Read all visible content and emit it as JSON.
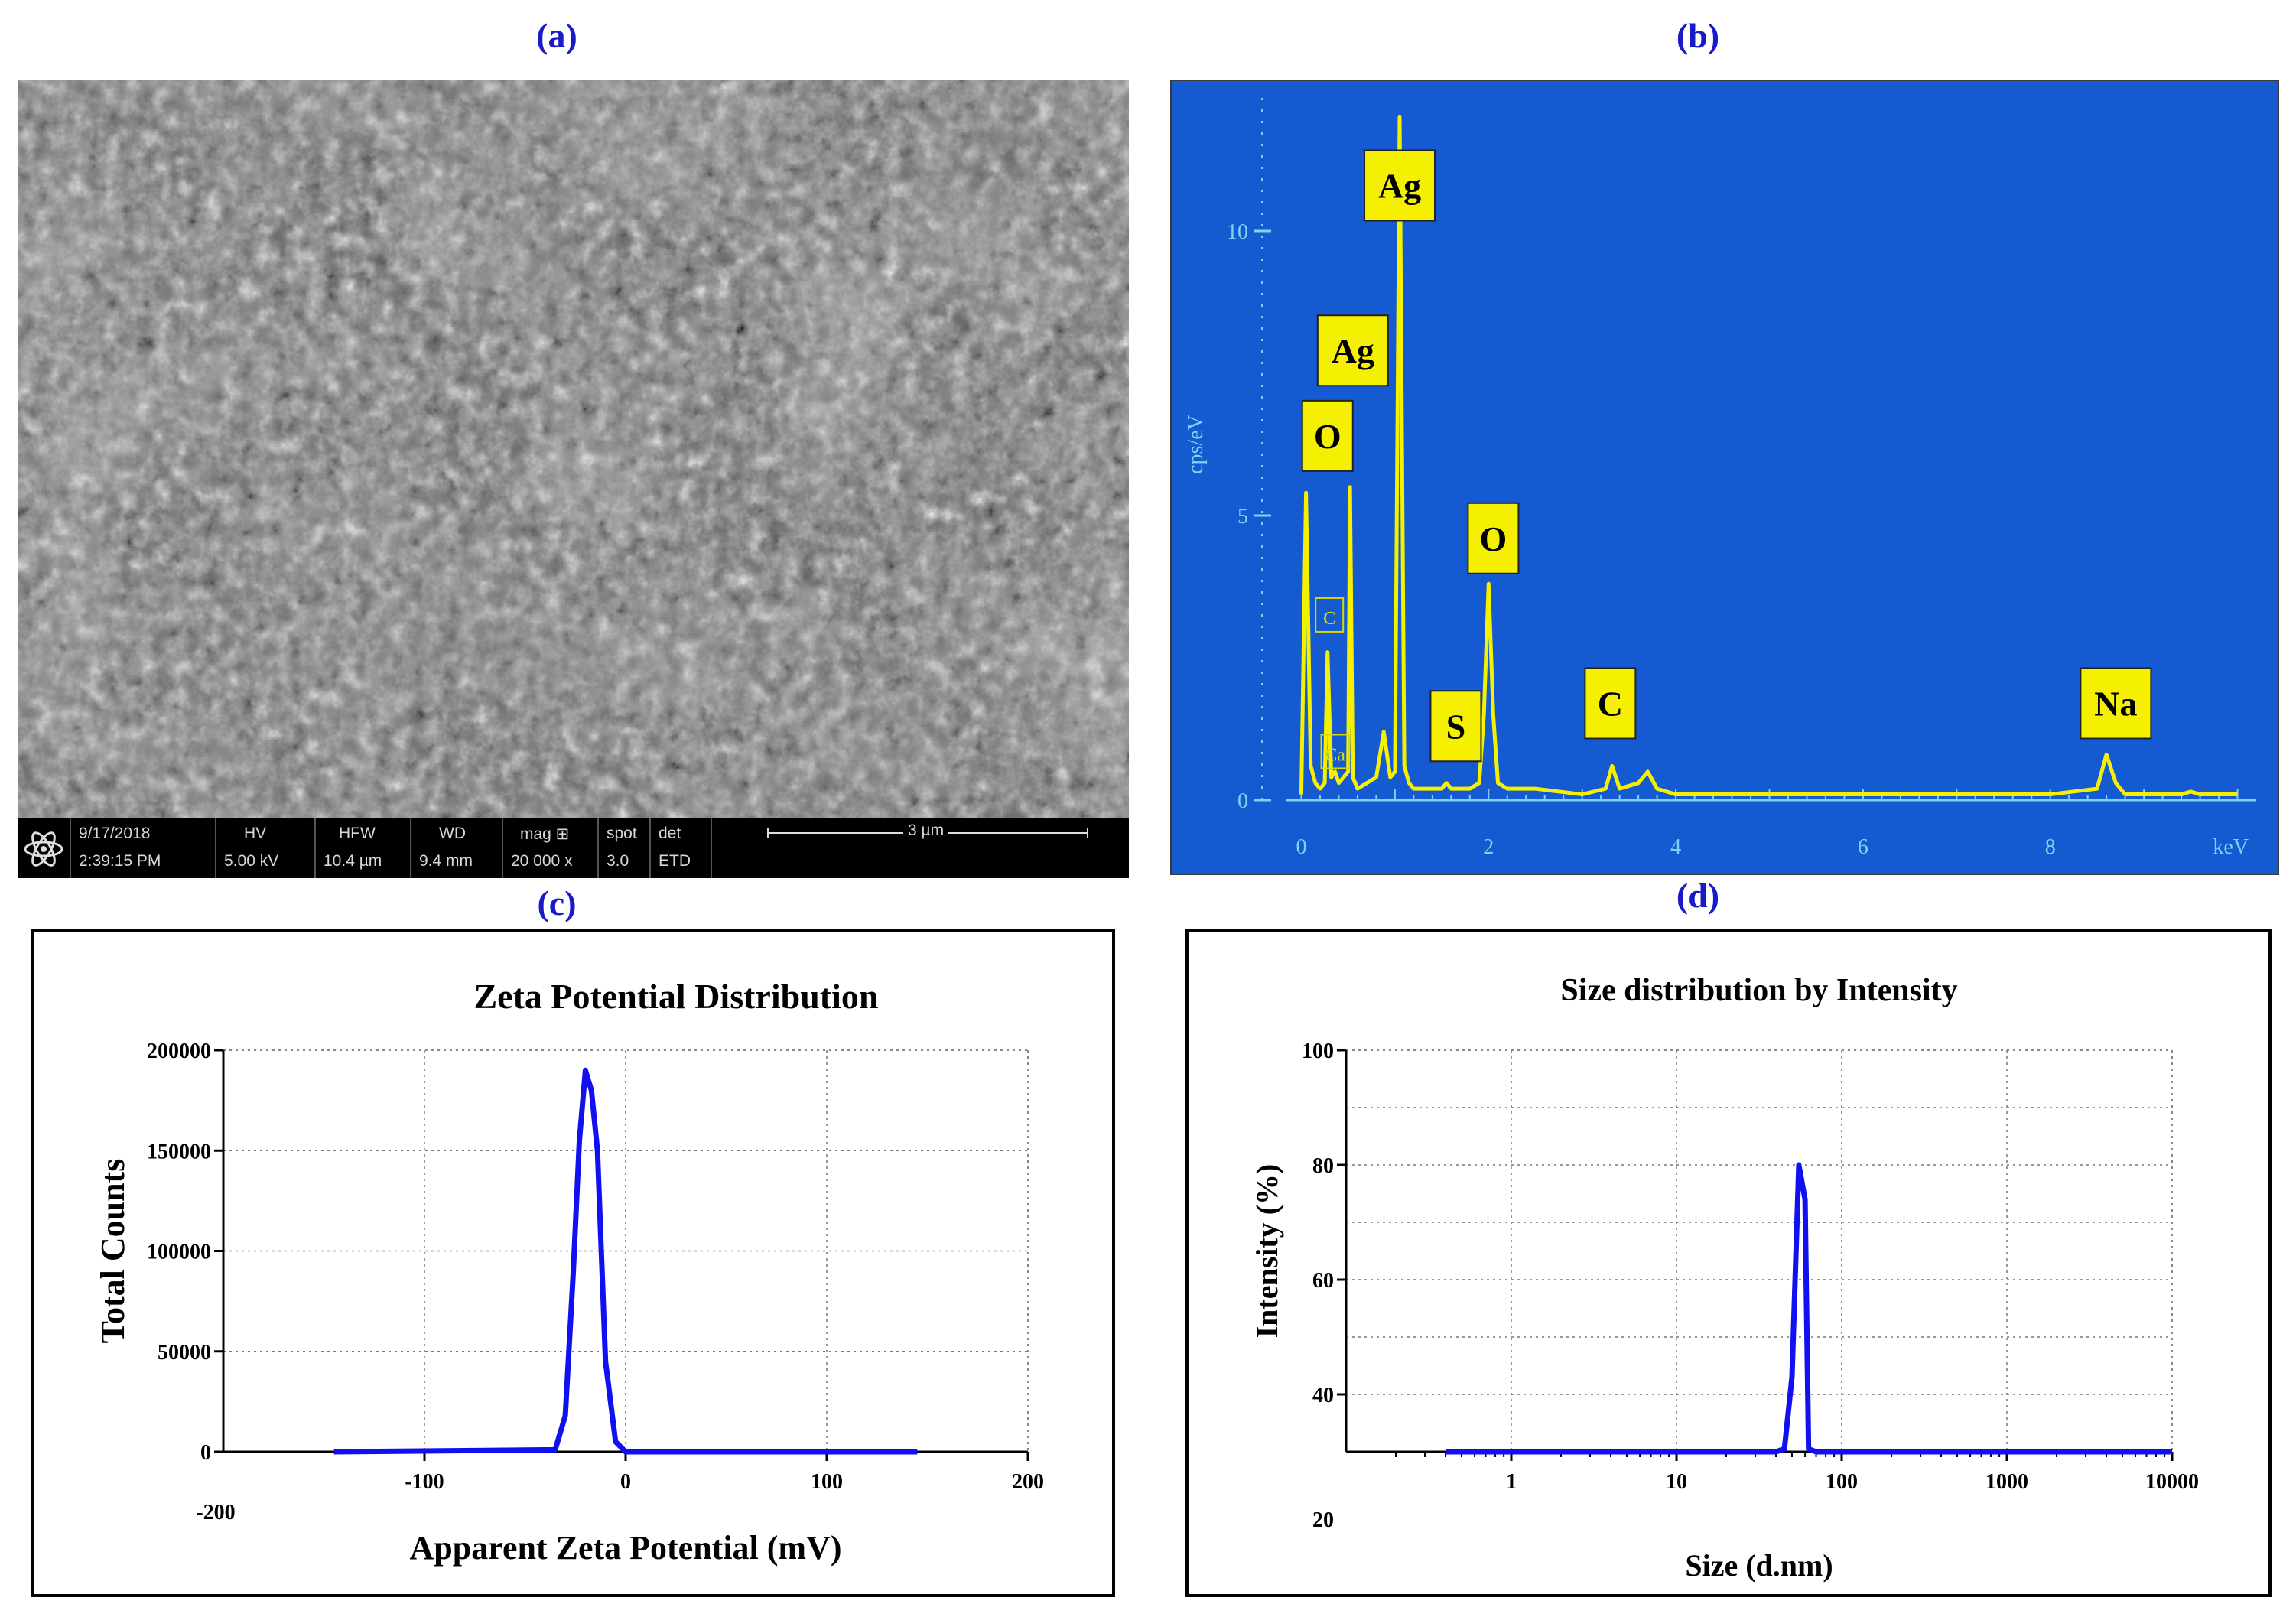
{
  "panels": {
    "a": "(a)",
    "b": "(b)",
    "c": "(c)",
    "d": "(d)"
  },
  "sem": {
    "date": "9/17/2018",
    "time": "2:39:15 PM",
    "hv_label": "HV",
    "hv_value": "5.00 kV",
    "hfw_label": "HFW",
    "hfw_value": "10.4 µm",
    "wd_label": "WD",
    "wd_value": "9.4 mm",
    "mag_label": "mag ⊞",
    "mag_value": "20 000 x",
    "spot_label": "spot",
    "spot_value": "3.0",
    "det_label": "det",
    "det_value": "ETD",
    "scale_label": "3 µm"
  },
  "chart_data": [
    {
      "id": "b",
      "type": "line",
      "title": "",
      "xlabel": "keV",
      "ylabel": "cps/eV",
      "xlim": [
        -0.2,
        10.2
      ],
      "ylim": [
        0,
        12.5
      ],
      "xticks": [
        0,
        2,
        4,
        6,
        8
      ],
      "yticks": [
        0,
        5,
        10
      ],
      "colors": {
        "background": "#155ad0",
        "line": "#f4f000",
        "axis": "#7fd2f0"
      },
      "series": [
        {
          "x": [
            0,
            0.05,
            0.1,
            0.15,
            0.2,
            0.25,
            0.28,
            0.32,
            0.36,
            0.4,
            0.45,
            0.5,
            0.52,
            0.55,
            0.6,
            0.7,
            0.8,
            0.88,
            0.95,
            1.0,
            1.05,
            1.1,
            1.15,
            1.2,
            1.3,
            1.5,
            1.55,
            1.6,
            1.8,
            1.9,
            1.95,
            2.0,
            2.05,
            2.1,
            2.2,
            2.5,
            3.0,
            3.25,
            3.32,
            3.4,
            3.6,
            3.7,
            3.8,
            4.0,
            5.0,
            6.0,
            7.0,
            8.0,
            8.5,
            8.6,
            8.7,
            8.8,
            9.0,
            9.4,
            9.5,
            9.6,
            10.0
          ],
          "y": [
            0.1,
            5.4,
            0.6,
            0.3,
            0.2,
            0.3,
            2.6,
            0.4,
            0.5,
            0.3,
            0.4,
            0.5,
            5.5,
            0.4,
            0.2,
            0.3,
            0.4,
            1.2,
            0.4,
            0.5,
            12.0,
            0.6,
            0.3,
            0.2,
            0.2,
            0.2,
            0.3,
            0.2,
            0.2,
            0.3,
            1.5,
            3.8,
            1.5,
            0.3,
            0.2,
            0.2,
            0.1,
            0.2,
            0.6,
            0.2,
            0.3,
            0.5,
            0.2,
            0.1,
            0.1,
            0.1,
            0.1,
            0.1,
            0.2,
            0.8,
            0.3,
            0.1,
            0.1,
            0.1,
            0.15,
            0.1,
            0.1
          ]
        }
      ],
      "annotations": [
        {
          "text": "Ag",
          "x": 1.05,
          "y": 10.8,
          "boxed": true
        },
        {
          "text": "Ag",
          "x": 0.55,
          "y": 7.9,
          "boxed": true
        },
        {
          "text": "O",
          "x": 0.28,
          "y": 6.4,
          "boxed": true
        },
        {
          "text": "O",
          "x": 2.05,
          "y": 4.6,
          "boxed": true
        },
        {
          "text": "S",
          "x": 1.65,
          "y": 1.3,
          "boxed": true
        },
        {
          "text": "C",
          "x": 3.3,
          "y": 1.7,
          "boxed": true
        },
        {
          "text": "Na",
          "x": 8.7,
          "y": 1.7,
          "boxed": true
        },
        {
          "text": "C",
          "x": 0.3,
          "y": 3.2,
          "boxed": false
        },
        {
          "text": "Ca",
          "x": 0.36,
          "y": 0.8,
          "boxed": false
        }
      ]
    },
    {
      "id": "c",
      "type": "line",
      "title": "Zeta Potential Distribution",
      "xlabel": "Apparent Zeta Potential (mV)",
      "ylabel": "Total Counts",
      "xlim": [
        -200,
        200
      ],
      "ylim": [
        0,
        200000
      ],
      "xticks": [
        -100,
        0,
        100,
        200
      ],
      "xtick_extra": "-200",
      "yticks": [
        0,
        50000,
        100000,
        150000,
        200000
      ],
      "grid": true,
      "colors": {
        "line": "#1010f0"
      },
      "series": [
        {
          "x": [
            -145,
            -35,
            -30,
            -26,
            -23,
            -20,
            -17,
            -14,
            -10,
            -5,
            0,
            145
          ],
          "y": [
            0,
            1000,
            18000,
            90000,
            155000,
            190000,
            180000,
            150000,
            45000,
            5000,
            0,
            0
          ]
        }
      ]
    },
    {
      "id": "d",
      "type": "line",
      "title": "Size distribution by Intensity",
      "xlabel": "Size (d.nm)",
      "ylabel": "Intensity (%)",
      "xscale": "log",
      "xlim": [
        0.1,
        10000
      ],
      "ylim": [
        30,
        100
      ],
      "xticks": [
        1,
        10,
        100,
        1000,
        10000
      ],
      "yticks": [
        40,
        60,
        80,
        100
      ],
      "ytick_extra": "20",
      "grid": true,
      "colors": {
        "line": "#1010f0"
      },
      "series": [
        {
          "x": [
            0.4,
            40,
            45,
            50,
            55,
            60,
            63,
            70,
            10000
          ],
          "y": [
            30,
            30,
            30.5,
            43,
            80,
            74,
            30.5,
            30,
            30
          ]
        }
      ]
    }
  ]
}
